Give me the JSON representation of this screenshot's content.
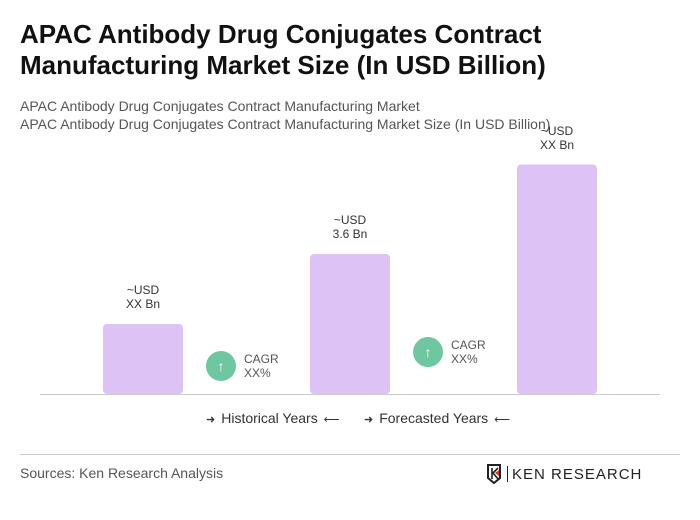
{
  "title": "APAC Antibody Drug Conjugates Contract Manufacturing Market Size (In USD Billion)",
  "subtitle1": "APAC Antibody Drug Conjugates Contract Manufacturing Market",
  "subtitle2": "APAC Antibody Drug Conjugates Contract Manufacturing Market Size (In USD Billion)",
  "chart_data": {
    "type": "bar",
    "values": [
      1.8,
      3.6,
      5.9
    ],
    "labels": [
      [
        "~USD",
        "XX Bn"
      ],
      [
        "~USD",
        "3.6 Bn"
      ],
      [
        "~USD",
        "XX Bn"
      ]
    ],
    "cagr": [
      {
        "label": "CAGR",
        "value": "XX%"
      },
      {
        "label": "CAGR",
        "value": "XX%"
      }
    ],
    "bar_color": "#dcc2f5",
    "cagr_color": "#6fc7a2",
    "grid": false
  },
  "legend": {
    "historical": "Historical Years",
    "forecasted": "Forecasted Years",
    "arrow_right": "➜",
    "arrow_left": "🡐"
  },
  "sources": "Sources: Ken Research Analysis",
  "logo": "KEN RESEARCH"
}
